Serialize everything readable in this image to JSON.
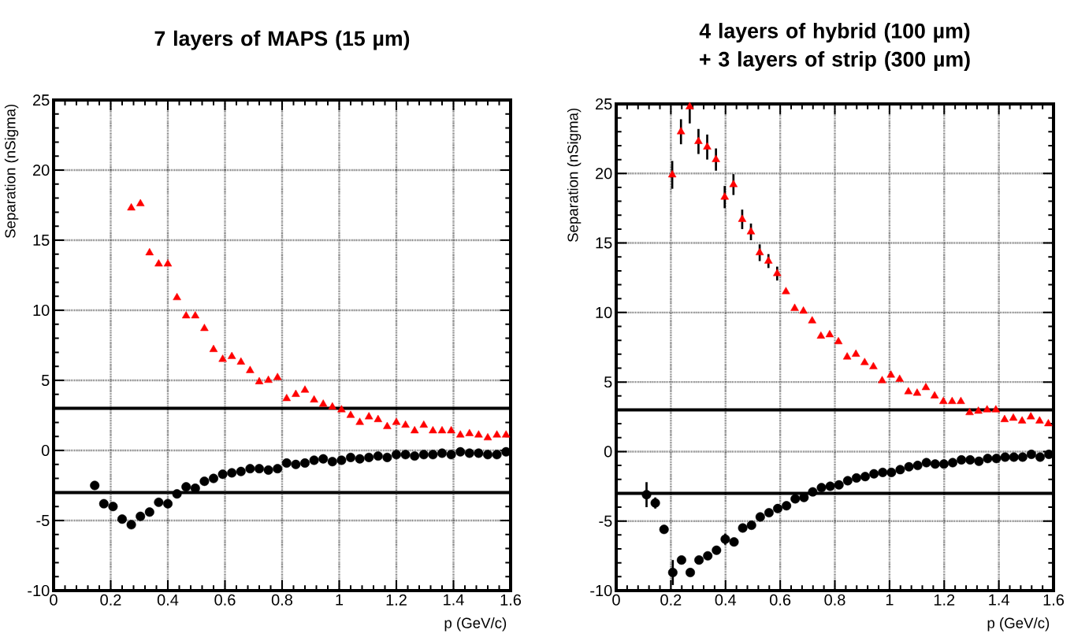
{
  "chart_data": [
    {
      "type": "scatter",
      "title": "7 layers of MAPS (15 µm)",
      "xlabel": "p (GeV/c)",
      "ylabel": "Separation (nSigma)",
      "xlim": [
        0,
        1.6
      ],
      "ylim": [
        -10,
        25
      ],
      "xticks": [
        0,
        0.2,
        0.4,
        0.6,
        0.8,
        1,
        1.2,
        1.4,
        1.6
      ],
      "yticks": [
        -10,
        -5,
        0,
        5,
        10,
        15,
        20,
        25
      ],
      "grid": true,
      "ref_lines": [
        {
          "axis": "y",
          "value": 3,
          "color": "#000000"
        },
        {
          "axis": "y",
          "value": -3,
          "color": "#000000"
        }
      ],
      "series": [
        {
          "color": "#ff0000",
          "marker": "triangle",
          "x": [
            0.272,
            0.304,
            0.336,
            0.368,
            0.4,
            0.432,
            0.464,
            0.496,
            0.528,
            0.56,
            0.592,
            0.624,
            0.656,
            0.688,
            0.72,
            0.752,
            0.784,
            0.816,
            0.848,
            0.88,
            0.912,
            0.944,
            0.976,
            1.008,
            1.04,
            1.072,
            1.104,
            1.136,
            1.168,
            1.2,
            1.232,
            1.264,
            1.296,
            1.328,
            1.36,
            1.392,
            1.424,
            1.456,
            1.488,
            1.52,
            1.552,
            1.584
          ],
          "values": [
            17.3,
            17.6,
            14.1,
            13.3,
            13.3,
            10.9,
            9.6,
            9.6,
            8.7,
            7.2,
            6.5,
            6.7,
            6.3,
            5.7,
            4.9,
            5.0,
            5.2,
            3.7,
            4.0,
            4.3,
            3.6,
            3.3,
            3.1,
            2.9,
            2.5,
            2.0,
            2.4,
            2.2,
            1.7,
            2.0,
            1.8,
            1.4,
            1.8,
            1.4,
            1.4,
            1.4,
            1.1,
            1.2,
            1.1,
            0.9,
            1.1,
            1.1
          ]
        },
        {
          "color": "#000000",
          "marker": "circle",
          "x": [
            0.144,
            0.176,
            0.208,
            0.24,
            0.272,
            0.304,
            0.336,
            0.368,
            0.4,
            0.432,
            0.464,
            0.496,
            0.528,
            0.56,
            0.592,
            0.624,
            0.656,
            0.688,
            0.72,
            0.752,
            0.784,
            0.816,
            0.848,
            0.88,
            0.912,
            0.944,
            0.976,
            1.008,
            1.04,
            1.072,
            1.104,
            1.136,
            1.168,
            1.2,
            1.232,
            1.264,
            1.296,
            1.328,
            1.36,
            1.392,
            1.424,
            1.456,
            1.488,
            1.52,
            1.552,
            1.584
          ],
          "values": [
            -2.5,
            -3.8,
            -4.0,
            -4.9,
            -5.3,
            -4.7,
            -4.4,
            -3.7,
            -3.8,
            -3.1,
            -2.6,
            -2.7,
            -2.2,
            -2.0,
            -1.7,
            -1.6,
            -1.5,
            -1.3,
            -1.3,
            -1.4,
            -1.3,
            -0.9,
            -1.0,
            -0.9,
            -0.7,
            -0.6,
            -0.8,
            -0.7,
            -0.5,
            -0.6,
            -0.5,
            -0.4,
            -0.5,
            -0.3,
            -0.3,
            -0.4,
            -0.3,
            -0.3,
            -0.2,
            -0.3,
            -0.1,
            -0.2,
            -0.2,
            -0.3,
            -0.3,
            -0.1
          ]
        }
      ]
    },
    {
      "type": "scatter",
      "title": "4 layers of hybrid (100 µm) + 3 layers of strip (300 µm)",
      "xlabel": "p (GeV/c)",
      "ylabel": "Separation (nSigma)",
      "xlim": [
        0,
        1.6
      ],
      "ylim": [
        -10,
        25
      ],
      "xticks": [
        0,
        0.2,
        0.4,
        0.6,
        0.8,
        1,
        1.2,
        1.4,
        1.6
      ],
      "yticks": [
        -10,
        -5,
        0,
        5,
        10,
        15,
        20,
        25
      ],
      "grid": true,
      "ref_lines": [
        {
          "axis": "y",
          "value": 3,
          "color": "#000000"
        },
        {
          "axis": "y",
          "value": -3,
          "color": "#000000"
        }
      ],
      "series": [
        {
          "color": "#ff0000",
          "marker": "triangle",
          "x": [
            0.205,
            0.237,
            0.269,
            0.301,
            0.333,
            0.365,
            0.397,
            0.429,
            0.461,
            0.493,
            0.525,
            0.557,
            0.589,
            0.621,
            0.653,
            0.685,
            0.717,
            0.749,
            0.781,
            0.813,
            0.845,
            0.877,
            0.909,
            0.941,
            0.973,
            1.005,
            1.037,
            1.069,
            1.101,
            1.133,
            1.165,
            1.197,
            1.229,
            1.261,
            1.293,
            1.325,
            1.357,
            1.389,
            1.421,
            1.453,
            1.485,
            1.517,
            1.549,
            1.581
          ],
          "values": [
            19.9,
            23.0,
            24.8,
            22.3,
            21.9,
            21.0,
            18.3,
            19.2,
            16.7,
            15.8,
            14.3,
            13.7,
            12.8,
            11.5,
            10.3,
            10.1,
            9.4,
            8.3,
            8.4,
            7.9,
            6.8,
            7.0,
            6.4,
            6.1,
            5.1,
            5.5,
            5.2,
            4.3,
            4.2,
            4.6,
            4.0,
            3.6,
            3.6,
            3.6,
            2.8,
            2.9,
            3.0,
            3.0,
            2.3,
            2.4,
            2.2,
            2.5,
            2.2,
            2.0
          ],
          "errors": [
            1.0,
            0.9,
            [
              23.6,
              25
            ],
            0.9,
            0.9,
            0.8,
            0.8,
            0.75,
            0.7,
            0.6,
            0.6,
            0.5,
            0.5,
            null,
            null,
            null,
            null,
            null,
            null,
            null,
            null,
            null,
            null,
            null,
            null,
            null,
            null,
            null,
            null,
            null,
            null,
            null,
            null,
            null,
            null,
            null,
            null,
            null,
            null,
            null,
            null,
            null,
            null,
            null
          ]
        },
        {
          "color": "#000000",
          "marker": "circle",
          "x": [
            0.111,
            0.143,
            0.175,
            0.207,
            0.239,
            0.271,
            0.303,
            0.335,
            0.367,
            0.399,
            0.431,
            0.463,
            0.495,
            0.527,
            0.559,
            0.591,
            0.623,
            0.655,
            0.687,
            0.719,
            0.751,
            0.783,
            0.815,
            0.847,
            0.879,
            0.911,
            0.943,
            0.975,
            1.007,
            1.039,
            1.071,
            1.103,
            1.135,
            1.167,
            1.199,
            1.231,
            1.263,
            1.295,
            1.327,
            1.359,
            1.391,
            1.423,
            1.455,
            1.487,
            1.519,
            1.551,
            1.583
          ],
          "values": [
            -3.1,
            -3.7,
            -5.6,
            -8.7,
            -7.8,
            -8.7,
            -7.8,
            -7.5,
            -7.1,
            -6.3,
            -6.5,
            -5.5,
            -5.3,
            -4.7,
            -4.4,
            -4.1,
            -3.9,
            -3.4,
            -3.3,
            -2.9,
            -2.6,
            -2.5,
            -2.4,
            -2.1,
            -1.9,
            -1.8,
            -1.6,
            -1.5,
            -1.5,
            -1.3,
            -1.1,
            -1.0,
            -0.8,
            -0.9,
            -0.9,
            -0.8,
            -0.6,
            -0.6,
            -0.7,
            -0.5,
            -0.5,
            -0.4,
            -0.4,
            -0.4,
            -0.2,
            -0.4,
            -0.2
          ],
          "errors": [
            0.9,
            0.4,
            null,
            0.9,
            null,
            null,
            null,
            null,
            null,
            0.4,
            null,
            null,
            null,
            null,
            null,
            null,
            null,
            null,
            null,
            null,
            null,
            null,
            null,
            null,
            null,
            null,
            null,
            null,
            null,
            null,
            null,
            null,
            null,
            null,
            null,
            null,
            null,
            null,
            null,
            null,
            null,
            null,
            null,
            null,
            null,
            null,
            null
          ]
        }
      ]
    }
  ]
}
